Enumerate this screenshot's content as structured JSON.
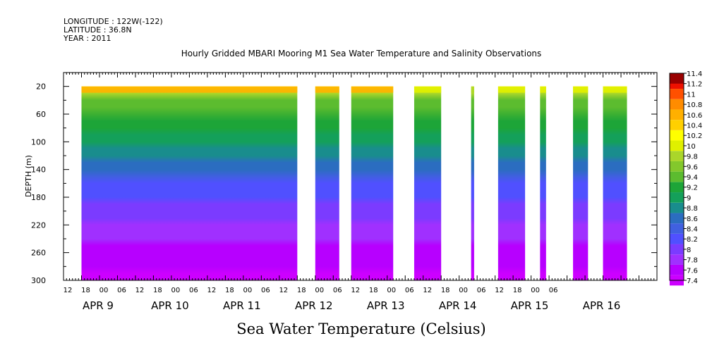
{
  "header": {
    "longitude": "LONGITUDE : 122W(-122)",
    "latitude": "LATITUDE : 36.8N",
    "year": "YEAR : 2011"
  },
  "chart_data": {
    "type": "heatmap",
    "title": "Hourly Gridded MBARI Mooring M1 Sea Water Temperature and Salinity Observations",
    "xlabel": "",
    "ylabel": "DEPTH (m)",
    "colorbar_label": "Sea Water Temperature (Celsius)",
    "x_hour_ticks": [
      "12",
      "18",
      "00",
      "06",
      "12",
      "18",
      "00",
      "06",
      "12",
      "18",
      "00",
      "06",
      "12",
      "18",
      "00",
      "06",
      "12",
      "18",
      "00",
      "06",
      "12",
      "18",
      "00",
      "06",
      "12",
      "18",
      "00",
      "06"
    ],
    "x_day_labels": [
      "APR  9",
      "APR 10",
      "APR 11",
      "APR 12",
      "APR 13",
      "APR 14",
      "APR 15",
      "APR 16"
    ],
    "xlim": [
      "2011-04-08 12:00",
      "2011-04-16 18:00"
    ],
    "ylim": [
      300,
      0
    ],
    "y_ticks": [
      20,
      60,
      100,
      140,
      180,
      220,
      260,
      300
    ],
    "depth_range": [
      20,
      300
    ],
    "clim": [
      7.4,
      11.4
    ],
    "colorbar_ticks": [
      "7.4",
      "7.6",
      "7.8",
      "8",
      "8.2",
      "8.4",
      "8.6",
      "8.8",
      "9",
      "9.2",
      "9.4",
      "9.6",
      "9.8",
      "10",
      "10.2",
      "10.4",
      "10.6",
      "10.8",
      "11",
      "11.2",
      "11.4"
    ],
    "data_segments": [
      {
        "start": "2011-04-08 18:00",
        "end": "2011-04-11 18:00",
        "surface_temp": 10.5
      },
      {
        "start": "2011-04-12 00:00",
        "end": "2011-04-12 08:00",
        "surface_temp": 10.5
      },
      {
        "start": "2011-04-12 12:00",
        "end": "2011-04-13 02:00",
        "surface_temp": 10.5
      },
      {
        "start": "2011-04-13 09:00",
        "end": "2011-04-13 18:00",
        "surface_temp": 10.0
      },
      {
        "start": "2011-04-14 04:00",
        "end": "2011-04-14 05:00",
        "surface_temp": 9.8
      },
      {
        "start": "2011-04-14 13:00",
        "end": "2011-04-14 22:00",
        "surface_temp": 10.0
      },
      {
        "start": "2011-04-15 03:00",
        "end": "2011-04-15 05:00",
        "surface_temp": 10.0
      },
      {
        "start": "2011-04-15 14:00",
        "end": "2011-04-15 19:00",
        "surface_temp": 10.0
      },
      {
        "start": "2011-04-16 00:00",
        "end": "2011-04-16 08:00",
        "surface_temp": 10.0
      }
    ],
    "temperature_profile": [
      {
        "depth": 20,
        "temp": 10.2
      },
      {
        "depth": 40,
        "temp": 9.5
      },
      {
        "depth": 80,
        "temp": 9.1
      },
      {
        "depth": 120,
        "temp": 8.7
      },
      {
        "depth": 160,
        "temp": 8.3
      },
      {
        "depth": 200,
        "temp": 8.0
      },
      {
        "depth": 240,
        "temp": 7.8
      },
      {
        "depth": 280,
        "temp": 7.6
      },
      {
        "depth": 300,
        "temp": 7.45
      }
    ],
    "colormap": [
      "#cc00ff",
      "#b700ff",
      "#a030ff",
      "#7b3bff",
      "#5050ff",
      "#4060e0",
      "#2b6dc0",
      "#198d8d",
      "#14a05a",
      "#1da538",
      "#3cb032",
      "#5cbc2f",
      "#83c82c",
      "#aad62a",
      "#e0f000",
      "#ffff00",
      "#ffd000",
      "#ffb000",
      "#ff8c00",
      "#ff5000",
      "#ee1000",
      "#990000"
    ]
  }
}
